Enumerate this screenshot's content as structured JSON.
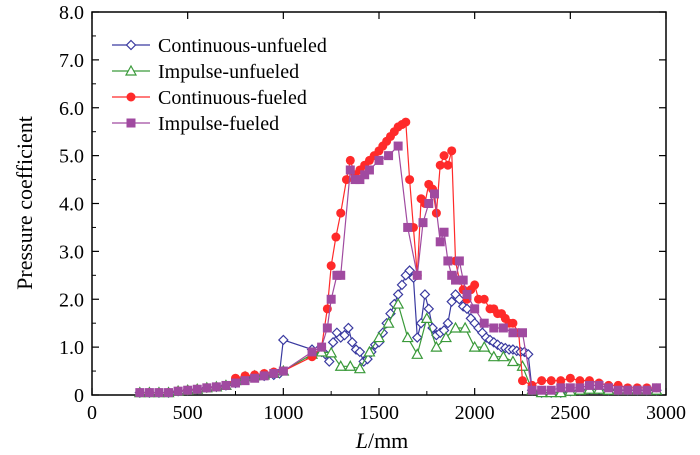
{
  "chart_data": {
    "type": "line",
    "title": "",
    "xlabel": "L/mm",
    "xlabel_var": "L",
    "xlabel_unit": "/mm",
    "ylabel": "Pressure coefficient",
    "xlim": [
      0,
      3000
    ],
    "ylim": [
      0,
      8.0
    ],
    "xticks": [
      0,
      500,
      1000,
      1500,
      2000,
      2500,
      3000
    ],
    "xtick_labels": [
      "0",
      "500",
      "1000",
      "1500",
      "2000",
      "2500",
      "3000"
    ],
    "yticks": [
      0,
      1,
      2,
      3,
      4,
      5,
      6,
      7,
      8
    ],
    "ytick_labels": [
      "0",
      "1.0",
      "2.0",
      "3.0",
      "4.0",
      "5.0",
      "6.0",
      "7.0",
      "8.0"
    ],
    "grid": false,
    "legend_position": "top-left",
    "series": [
      {
        "name": "Continuous-unfueled",
        "color": "#3a3aa0",
        "marker": "diamond-open",
        "x": [
          250,
          300,
          350,
          400,
          450,
          500,
          550,
          600,
          650,
          700,
          750,
          800,
          850,
          900,
          950,
          980,
          1000,
          1150,
          1180,
          1200,
          1220,
          1240,
          1260,
          1280,
          1300,
          1320,
          1340,
          1360,
          1380,
          1400,
          1420,
          1440,
          1460,
          1480,
          1500,
          1520,
          1540,
          1560,
          1580,
          1600,
          1620,
          1640,
          1660,
          1680,
          1700,
          1720,
          1740,
          1760,
          1780,
          1800,
          1820,
          1840,
          1860,
          1880,
          1900,
          1920,
          1940,
          1960,
          1980,
          2000,
          2020,
          2040,
          2060,
          2080,
          2100,
          2120,
          2140,
          2160,
          2180,
          2200,
          2220,
          2240,
          2260,
          2280,
          2300,
          2350,
          2400,
          2450,
          2500,
          2550,
          2600,
          2650,
          2700,
          2750,
          2800,
          2850,
          2900,
          2950
        ],
        "values": [
          0.05,
          0.05,
          0.05,
          0.05,
          0.08,
          0.1,
          0.12,
          0.15,
          0.17,
          0.2,
          0.25,
          0.35,
          0.38,
          0.4,
          0.42,
          0.45,
          1.15,
          0.95,
          0.93,
          0.9,
          0.85,
          0.7,
          1.1,
          1.3,
          1.2,
          1.25,
          1.4,
          1.1,
          0.95,
          0.9,
          0.7,
          0.75,
          0.9,
          1.05,
          1.1,
          1.3,
          1.5,
          1.7,
          1.9,
          2.1,
          2.3,
          2.5,
          2.6,
          2.45,
          1.2,
          1.5,
          2.1,
          1.8,
          1.4,
          1.25,
          1.3,
          1.35,
          1.5,
          1.95,
          2.1,
          2.0,
          1.85,
          1.8,
          1.6,
          1.5,
          1.4,
          1.3,
          1.2,
          1.15,
          1.1,
          1.05,
          1.0,
          0.98,
          0.95,
          0.95,
          0.92,
          0.9,
          0.9,
          0.85,
          0.1,
          0.05,
          0.05,
          0.05,
          0.08,
          0.1,
          0.12,
          0.12,
          0.1,
          0.1,
          0.1,
          0.1,
          0.1,
          0.1
        ]
      },
      {
        "name": "Impulse-unfueled",
        "color": "#3a9a3a",
        "marker": "triangle-open",
        "x": [
          250,
          300,
          350,
          400,
          450,
          500,
          550,
          600,
          650,
          700,
          750,
          800,
          850,
          900,
          950,
          1000,
          1150,
          1200,
          1250,
          1300,
          1350,
          1400,
          1450,
          1500,
          1550,
          1600,
          1650,
          1700,
          1750,
          1800,
          1850,
          1900,
          1950,
          2000,
          2050,
          2100,
          2150,
          2200,
          2250,
          2300,
          2350,
          2400,
          2450,
          2500,
          2550,
          2600,
          2650,
          2700,
          2750,
          2800,
          2850,
          2900,
          2950
        ],
        "values": [
          0.05,
          0.05,
          0.05,
          0.05,
          0.08,
          0.1,
          0.12,
          0.15,
          0.17,
          0.2,
          0.3,
          0.38,
          0.4,
          0.42,
          0.45,
          0.5,
          0.85,
          0.9,
          0.88,
          0.6,
          0.6,
          0.55,
          0.9,
          1.2,
          1.5,
          1.9,
          1.2,
          0.85,
          1.6,
          1.0,
          1.2,
          1.4,
          1.4,
          1.0,
          1.0,
          0.8,
          0.8,
          0.7,
          0.6,
          0.1,
          0.05,
          0.05,
          0.05,
          0.08,
          0.1,
          0.12,
          0.12,
          0.1,
          0.1,
          0.1,
          0.1,
          0.1,
          0.1
        ]
      },
      {
        "name": "Continuous-fueled",
        "color": "#ff2a2a",
        "marker": "circle-filled",
        "x": [
          250,
          300,
          350,
          400,
          450,
          500,
          550,
          600,
          650,
          700,
          750,
          800,
          850,
          900,
          950,
          1000,
          1150,
          1200,
          1230,
          1250,
          1275,
          1300,
          1330,
          1350,
          1375,
          1400,
          1425,
          1450,
          1475,
          1500,
          1520,
          1540,
          1560,
          1580,
          1600,
          1620,
          1640,
          1660,
          1680,
          1700,
          1720,
          1740,
          1760,
          1780,
          1800,
          1820,
          1840,
          1860,
          1880,
          1900,
          1920,
          1940,
          1960,
          1980,
          2000,
          2020,
          2050,
          2080,
          2100,
          2120,
          2140,
          2160,
          2180,
          2200,
          2230,
          2250,
          2300,
          2350,
          2400,
          2450,
          2500,
          2550,
          2600,
          2650,
          2700,
          2750,
          2800,
          2850,
          2900,
          2950
        ],
        "values": [
          0.05,
          0.05,
          0.05,
          0.05,
          0.08,
          0.1,
          0.12,
          0.15,
          0.17,
          0.2,
          0.35,
          0.4,
          0.42,
          0.45,
          0.48,
          0.5,
          0.8,
          1.0,
          1.8,
          2.7,
          3.3,
          3.8,
          4.5,
          4.9,
          4.6,
          4.7,
          4.8,
          4.9,
          5.0,
          5.1,
          5.2,
          5.3,
          5.4,
          5.5,
          5.6,
          5.65,
          5.7,
          4.5,
          3.5,
          2.5,
          4.1,
          4.0,
          4.4,
          4.3,
          3.8,
          4.8,
          5.0,
          4.8,
          5.1,
          2.8,
          2.4,
          2.2,
          2.0,
          2.2,
          2.3,
          2.0,
          2.0,
          1.8,
          1.8,
          1.7,
          1.7,
          1.6,
          1.5,
          1.5,
          1.3,
          0.3,
          0.2,
          0.3,
          0.3,
          0.3,
          0.35,
          0.3,
          0.3,
          0.25,
          0.2,
          0.2,
          0.15,
          0.15,
          0.15,
          0.15
        ]
      },
      {
        "name": "Impulse-fueled",
        "color": "#a04aa0",
        "marker": "square-filled",
        "x": [
          250,
          300,
          350,
          400,
          450,
          500,
          550,
          600,
          650,
          700,
          750,
          800,
          850,
          900,
          950,
          1000,
          1150,
          1200,
          1230,
          1250,
          1280,
          1300,
          1350,
          1375,
          1400,
          1425,
          1450,
          1500,
          1550,
          1600,
          1650,
          1700,
          1730,
          1760,
          1790,
          1820,
          1840,
          1860,
          1880,
          1900,
          1920,
          1940,
          1960,
          2000,
          2050,
          2100,
          2150,
          2200,
          2250,
          2300,
          2350,
          2400,
          2450,
          2500,
          2550,
          2600,
          2650,
          2700,
          2750,
          2800,
          2850,
          2900,
          2950
        ],
        "values": [
          0.05,
          0.05,
          0.05,
          0.05,
          0.08,
          0.1,
          0.12,
          0.15,
          0.17,
          0.2,
          0.25,
          0.3,
          0.35,
          0.4,
          0.45,
          0.5,
          0.9,
          1.0,
          1.4,
          2.0,
          2.5,
          2.5,
          4.7,
          4.5,
          4.5,
          4.6,
          4.7,
          4.9,
          5.0,
          5.2,
          3.5,
          2.5,
          3.6,
          4.0,
          4.2,
          3.2,
          3.4,
          2.8,
          2.5,
          2.4,
          2.8,
          2.4,
          2.1,
          1.8,
          1.5,
          1.4,
          1.4,
          1.3,
          1.3,
          0.1,
          0.1,
          0.1,
          0.15,
          0.15,
          0.15,
          0.2,
          0.2,
          0.15,
          0.1,
          0.1,
          0.1,
          0.1,
          0.15
        ]
      }
    ]
  }
}
